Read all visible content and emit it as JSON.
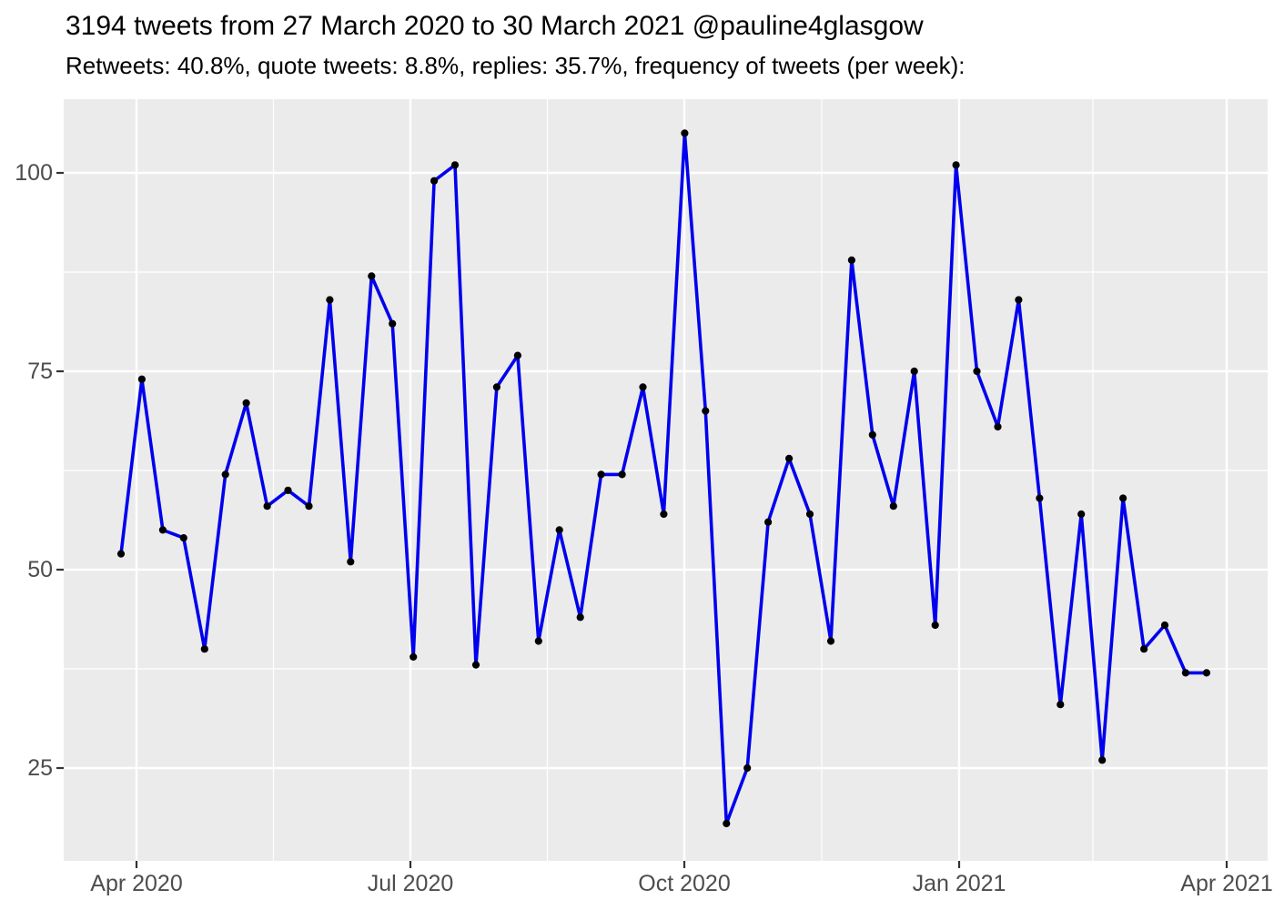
{
  "header": {
    "title": "3194 tweets from 27 March 2020 to 30 March 2021 @pauline4glasgow",
    "subtitle": "Retweets: 40.8%, quote tweets: 8.8%, replies: 35.7%, frequency of tweets (per week):"
  },
  "chart_data": {
    "type": "line",
    "title": "3194 tweets from 27 March 2020 to 30 March 2021 @pauline4glasgow",
    "subtitle": "Retweets: 40.8%, quote tweets: 8.8%, replies: 35.7%, frequency of tweets (per week):",
    "series_name": "frequency of tweets (per week)",
    "x_unit": "week",
    "x_start_label": "27 March 2020",
    "x_end_label": "30 March 2021",
    "n_points": 53,
    "values": [
      52,
      74,
      55,
      54,
      40,
      62,
      71,
      58,
      60,
      58,
      84,
      51,
      87,
      81,
      39,
      99,
      101,
      38,
      73,
      77,
      41,
      55,
      44,
      62,
      62,
      73,
      57,
      105,
      70,
      18,
      25,
      56,
      64,
      57,
      41,
      89,
      67,
      58,
      75,
      43,
      101,
      75,
      68,
      84,
      59,
      33,
      57,
      26,
      59,
      40,
      43,
      37,
      37
    ],
    "x_tick_labels": [
      "Apr 2020",
      "Jul 2020",
      "Oct 2020",
      "Jan 2021",
      "Apr 2021"
    ],
    "y_tick_labels": [
      "100",
      "75",
      "50",
      "25"
    ],
    "y_tick_values": [
      100,
      75,
      50,
      25
    ],
    "ylim_approx": [
      13,
      107
    ],
    "grid": "major and minor white gridlines on gray panel",
    "legend": "none",
    "colors": {
      "line": "#0000EE",
      "point": "#000000",
      "panel_bg": "#EBEBEB",
      "grid_major": "#FFFFFF",
      "grid_minor": "#FFFFFF",
      "axis_text": "#4D4D4D",
      "tick_mark": "#333333",
      "title_text": "#000000",
      "page_bg": "#FFFFFF"
    }
  }
}
